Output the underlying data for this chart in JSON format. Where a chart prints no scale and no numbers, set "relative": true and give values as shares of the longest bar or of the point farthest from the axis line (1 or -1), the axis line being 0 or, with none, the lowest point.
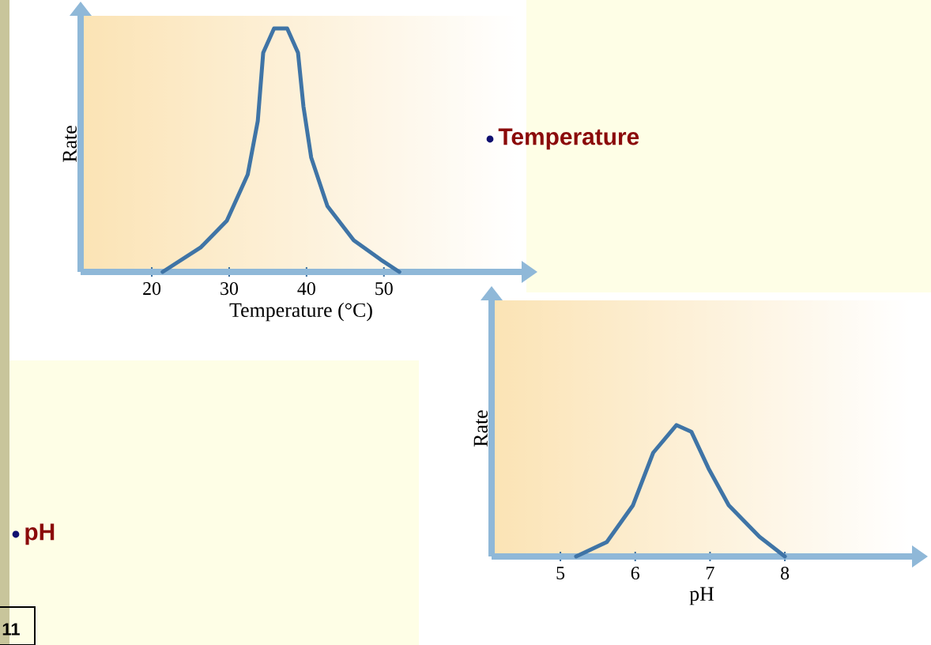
{
  "chart_data": [
    {
      "type": "line",
      "relative": true,
      "xlabel": "Temperature (°C)",
      "ylabel": "Rate",
      "xlim": [
        10.8,
        67.8
      ],
      "xticks": [
        20,
        30,
        40,
        50
      ],
      "color": "#3f74a6",
      "x": [
        21.4,
        26.3,
        29.7,
        32.4,
        33.7,
        34.4,
        35.8,
        37.5,
        38.9,
        39.6,
        40.6,
        42.7,
        46.1,
        49.6,
        52.0
      ],
      "values": [
        0,
        0.1,
        0.21,
        0.4,
        0.62,
        0.9,
        1.0,
        1.0,
        0.9,
        0.68,
        0.47,
        0.27,
        0.13,
        0.05,
        0
      ],
      "annotations": [
        "Temperature"
      ]
    },
    {
      "type": "line",
      "relative": true,
      "xlabel": "pH",
      "ylabel": "Rate",
      "xlim": [
        4.08,
        9.7
      ],
      "xticks": [
        5,
        6,
        7,
        8
      ],
      "color": "#3f74a6",
      "x": [
        5.21,
        5.62,
        5.97,
        6.24,
        6.55,
        6.75,
        6.98,
        7.25,
        7.66,
        8.0
      ],
      "values": [
        0,
        0.11,
        0.39,
        0.79,
        1.0,
        0.95,
        0.67,
        0.39,
        0.15,
        0
      ],
      "annotations": [
        "pH",
        "11"
      ]
    }
  ]
}
